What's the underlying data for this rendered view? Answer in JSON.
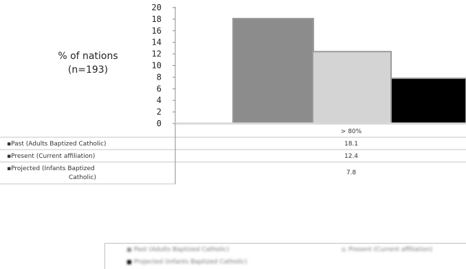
{
  "chart_data": {
    "type": "bar",
    "ylabel_lines": [
      "% of nations",
      "(n=193)"
    ],
    "yticks": [
      "20",
      "18",
      "16",
      "14",
      "12",
      "10",
      "8",
      "6",
      "4",
      "2",
      "0"
    ],
    "ylim": [
      0,
      20
    ],
    "categories": [
      "> 80%"
    ],
    "series": [
      {
        "name": "Past (Adults Baptized Catholic)",
        "legend_label": "▪Past (Adults Baptized Catholic)",
        "value_text": "18.1",
        "values": [
          18.1
        ],
        "color": "#8c8c8c"
      },
      {
        "name": "Present (Current affiliation)",
        "legend_label": "▪Present (Current affiliation)",
        "value_text": "12.4",
        "values": [
          12.4
        ],
        "color": "#d4d4d4"
      },
      {
        "name": "Projected (Infants Baptized Catholic)",
        "legend_label_lines": [
          "▪Projected (Infants Baptized",
          "Catholic)"
        ],
        "value_text": "7.8",
        "values": [
          7.8
        ],
        "color": "#000000"
      }
    ]
  }
}
